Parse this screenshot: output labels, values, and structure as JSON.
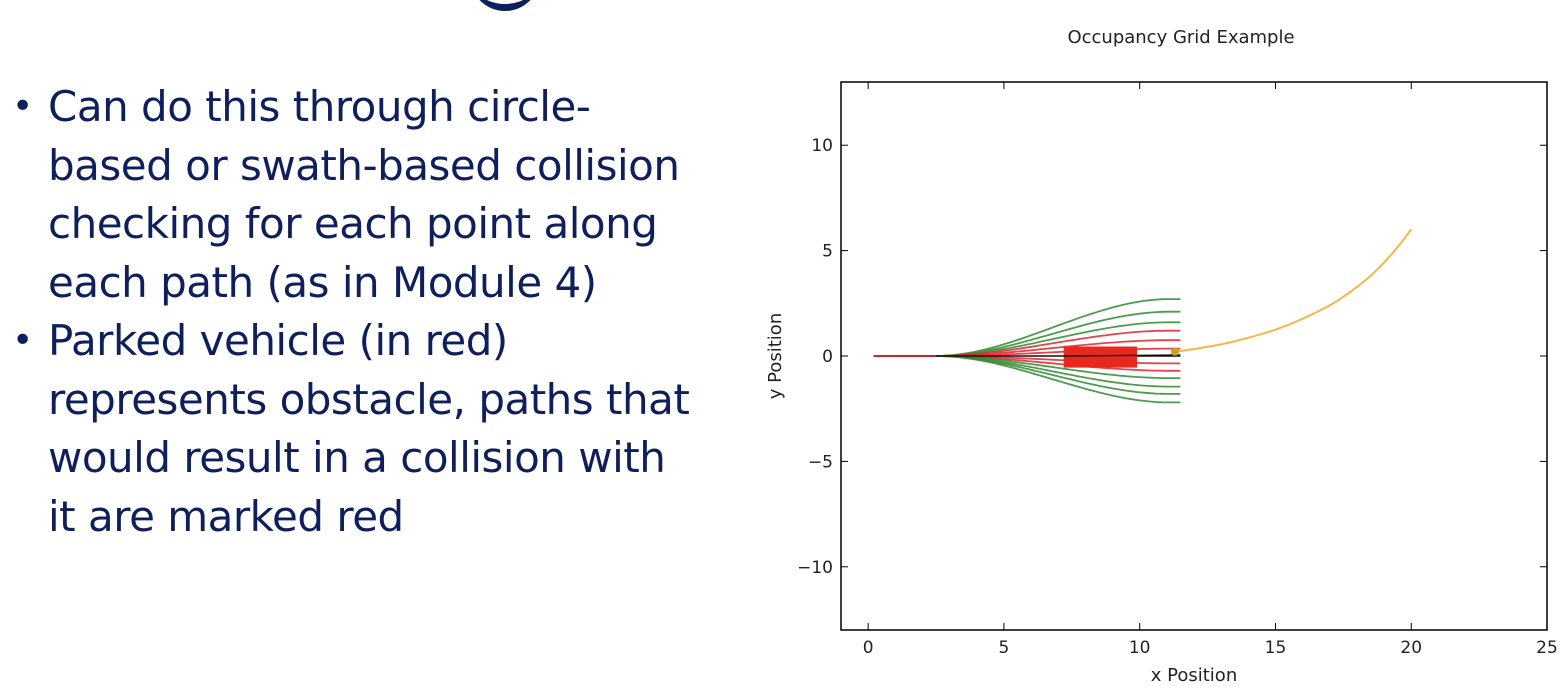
{
  "slide": {
    "bullets": [
      "Can do this through circle-based or swath-based collision checking for each point along each path (as in Module 4)",
      "Parked vehicle (in red) represents obstacle, paths that would result in a collision with it are marked red"
    ],
    "bullet_lines": [
      [
        "Can do this through circle-",
        "based or swath-based collision",
        "checking for each point along",
        "each path (as in Module 4)"
      ],
      [
        "Parked vehicle (in red)",
        "represents obstacle, paths that",
        "would result in a collision with",
        "it are marked red"
      ]
    ],
    "bullet_symbol": "•"
  },
  "chart_data": {
    "type": "line",
    "title": "Occupancy Grid Example",
    "xlabel": "x Position",
    "ylabel": "y Position",
    "xlim": [
      -1,
      25
    ],
    "ylim": [
      -13,
      13
    ],
    "xticks": [
      0,
      5,
      10,
      15,
      20,
      25
    ],
    "yticks": [
      -10,
      -5,
      0,
      5,
      10
    ],
    "xtick_labels": [
      "0",
      "5",
      "10",
      "15",
      "20",
      "25"
    ],
    "ytick_labels": [
      "−10",
      "−5",
      "0",
      "5",
      "10"
    ],
    "grid": false,
    "colors": {
      "feasible_path": "#2e8b2e",
      "colliding_path": "#e0222e",
      "chosen_path": "#111111",
      "reference_path": "#f4b64a",
      "obstacle": "#e8281e",
      "goal_point": "#c9a227"
    },
    "start": [
      0.2,
      0
    ],
    "path_start_x": 2.5,
    "path_end_x": 11.5,
    "path_end_offsets_y": [
      2.7,
      2.1,
      1.6,
      1.2,
      0.75,
      0.35,
      0.0,
      -0.35,
      -0.7,
      -1.05,
      -1.45,
      -1.8,
      -2.2
    ],
    "path_status": [
      "feasible",
      "feasible",
      "feasible",
      "colliding",
      "colliding",
      "colliding",
      "chosen",
      "colliding",
      "colliding",
      "feasible",
      "feasible",
      "feasible",
      "feasible"
    ],
    "obstacle": {
      "x_min": 7.2,
      "x_max": 9.9,
      "y_min": -0.55,
      "y_max": 0.45
    },
    "goal_point": [
      11.3,
      0.2
    ],
    "reference_path": [
      [
        11.3,
        0.2
      ],
      [
        13,
        0.55
      ],
      [
        15,
        1.25
      ],
      [
        17,
        2.4
      ],
      [
        18.5,
        3.8
      ],
      [
        20,
        6.0
      ]
    ]
  }
}
